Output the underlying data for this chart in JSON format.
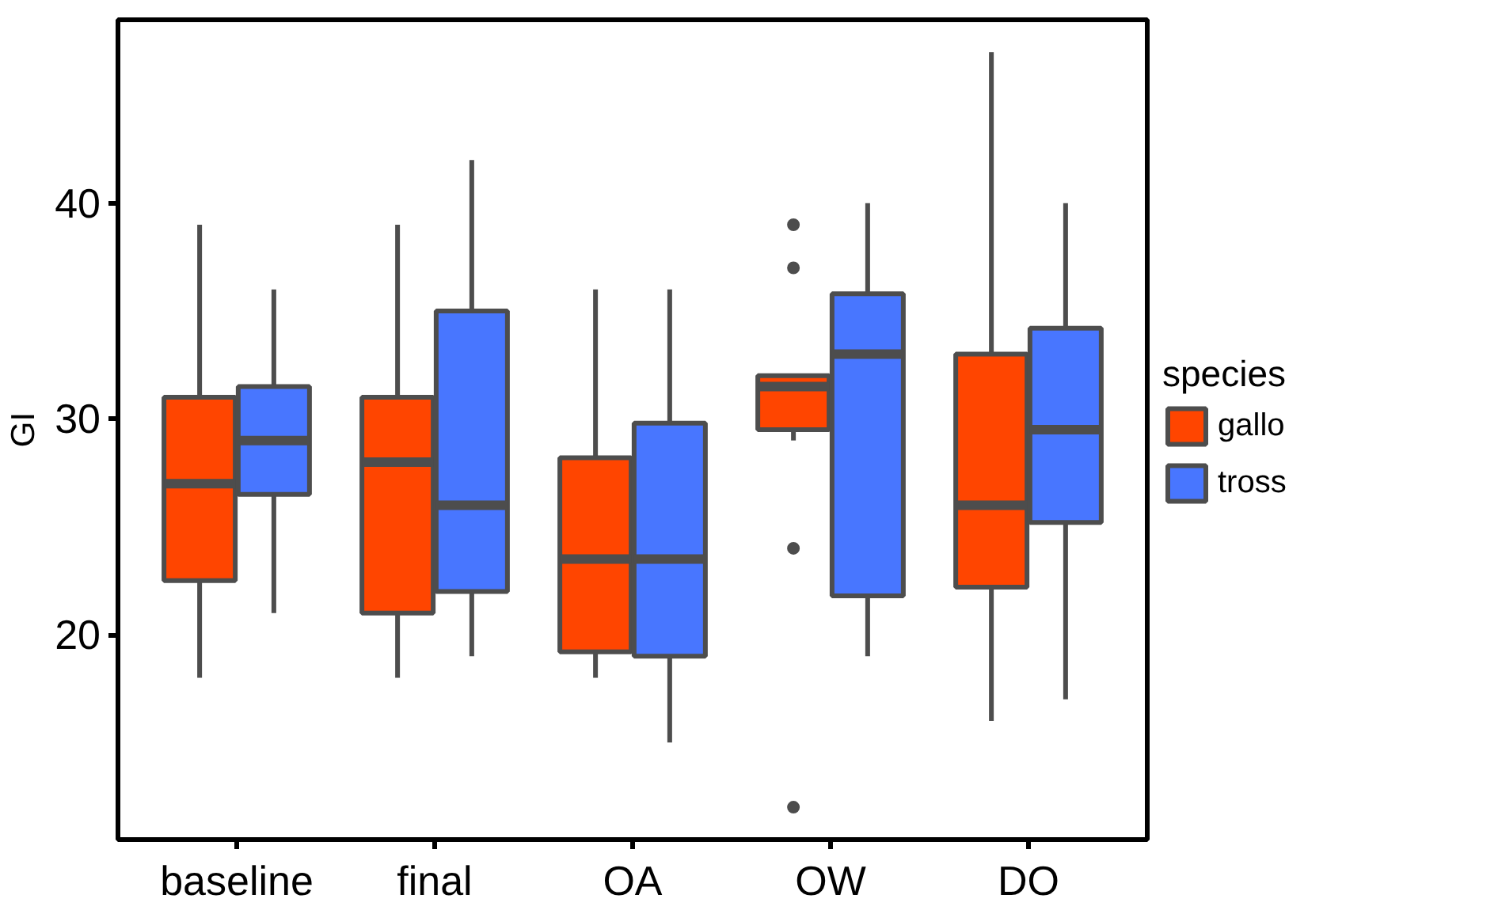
{
  "chart_data": {
    "type": "box",
    "ylabel": "GI",
    "legend_title": "species",
    "categories": [
      "baseline",
      "final",
      "OA",
      "OW",
      "DO"
    ],
    "ylim": [
      10.5,
      48.5
    ],
    "yticks": [
      20,
      30,
      40
    ],
    "grid": false,
    "legend": "right",
    "series": [
      {
        "name": "gallo",
        "color": "#ff4500",
        "boxes": [
          {
            "low": 18,
            "q1": 22.5,
            "median": 27,
            "q3": 31,
            "high": 39
          },
          {
            "low": 18,
            "q1": 21,
            "median": 28,
            "q3": 31,
            "high": 39
          },
          {
            "low": 18,
            "q1": 19.2,
            "median": 23.5,
            "q3": 28.2,
            "high": 36
          },
          {
            "low": 29,
            "q1": 29.5,
            "median": 31.5,
            "q3": 32,
            "high": 32,
            "outliers": [
              39,
              37,
              24,
              12
            ]
          },
          {
            "low": 16,
            "q1": 22.2,
            "median": 26,
            "q3": 33,
            "high": 47
          }
        ]
      },
      {
        "name": "tross",
        "color": "#4876ff",
        "boxes": [
          {
            "low": 21,
            "q1": 26.5,
            "median": 29,
            "q3": 31.5,
            "high": 36
          },
          {
            "low": 19,
            "q1": 22,
            "median": 26,
            "q3": 35,
            "high": 42
          },
          {
            "low": 15,
            "q1": 19,
            "median": 23.5,
            "q3": 29.8,
            "high": 36
          },
          {
            "low": 19,
            "q1": 21.8,
            "median": 33,
            "q3": 35.8,
            "high": 40
          },
          {
            "low": 17,
            "q1": 25.2,
            "median": 29.5,
            "q3": 34.2,
            "high": 40
          }
        ]
      }
    ]
  }
}
